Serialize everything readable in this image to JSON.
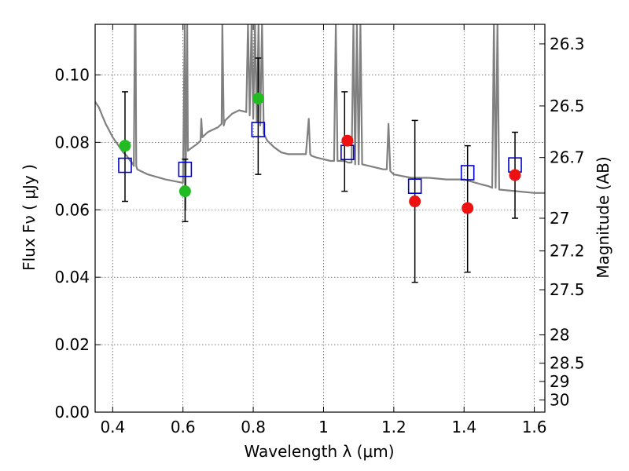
{
  "chart_data": {
    "type": "scatter",
    "title": "",
    "xlabel": "Wavelength  λ (μm)",
    "ylabel": "Flux  Fν  ( μJy )",
    "y2label": "Magnitude (AB)",
    "xlim": [
      0.35,
      1.63
    ],
    "ylim": [
      0.0,
      0.115
    ],
    "grid": true,
    "x_ticks": [
      0.4,
      0.6,
      0.8,
      1.0,
      1.2,
      1.4,
      1.6
    ],
    "x_tick_labels": [
      "0.4",
      "0.6",
      "0.8",
      "1",
      "1.2",
      "1.4",
      "1.6"
    ],
    "y_ticks": [
      0.0,
      0.02,
      0.04,
      0.06,
      0.08,
      0.1
    ],
    "y_tick_labels": [
      "0.00",
      "0.02",
      "0.04",
      "0.06",
      "0.08",
      "0.10"
    ],
    "y2_ticks": [
      {
        "flux": 0.1092,
        "label": "26.3"
      },
      {
        "flux": 0.0908,
        "label": "26.5"
      },
      {
        "flux": 0.0755,
        "label": "26.7"
      },
      {
        "flux": 0.0575,
        "label": "27"
      },
      {
        "flux": 0.0478,
        "label": "27.2"
      },
      {
        "flux": 0.0363,
        "label": "27.5"
      },
      {
        "flux": 0.0229,
        "label": "28"
      },
      {
        "flux": 0.0145,
        "label": "28.5"
      },
      {
        "flux": 0.0091,
        "label": "29"
      },
      {
        "flux": 0.0036,
        "label": "30"
      }
    ],
    "colors": {
      "model": "#808080",
      "model_points": "#0000cc",
      "observed_optical": "#22bb22",
      "observed_nir": "#ee1111",
      "errorbar": "#000000"
    },
    "series": [
      {
        "kind": "errorbar",
        "color": "black",
        "x": [
          0.435,
          0.606,
          0.814,
          1.06,
          1.26,
          1.41,
          1.545
        ],
        "y": [
          0.079,
          0.0655,
          0.093,
          0.0805,
          0.0625,
          0.0605,
          0.0703
        ],
        "yerr_low": [
          0.0625,
          0.0565,
          0.0705,
          0.0655,
          0.0385,
          0.0415,
          0.0575
        ],
        "yerr_high": [
          0.095,
          0.075,
          0.105,
          0.095,
          0.0865,
          0.079,
          0.083
        ]
      },
      {
        "kind": "points",
        "marker": "circle",
        "color": "green",
        "x": [
          0.435,
          0.606,
          0.814
        ],
        "y": [
          0.079,
          0.0655,
          0.093
        ]
      },
      {
        "kind": "points",
        "marker": "circle",
        "color": "red",
        "x": [
          1.068,
          1.26,
          1.41,
          1.545
        ],
        "y": [
          0.0805,
          0.0625,
          0.0605,
          0.0703
        ]
      },
      {
        "kind": "points",
        "marker": "open-square",
        "color": "blue",
        "x": [
          0.435,
          0.606,
          0.814,
          1.068,
          1.26,
          1.41,
          1.545
        ],
        "y": [
          0.0732,
          0.072,
          0.0838,
          0.077,
          0.067,
          0.071,
          0.0733
        ]
      },
      {
        "kind": "line",
        "color": "gray",
        "x": [
          0.35,
          0.36,
          0.37,
          0.38,
          0.39,
          0.4,
          0.41,
          0.42,
          0.43,
          0.44,
          0.45,
          0.455,
          0.46,
          0.463,
          0.465,
          0.467,
          0.47,
          0.5,
          0.55,
          0.6,
          0.605,
          0.607,
          0.612,
          0.614,
          0.62,
          0.64,
          0.65,
          0.652,
          0.655,
          0.66,
          0.67,
          0.68,
          0.69,
          0.7,
          0.71,
          0.712,
          0.716,
          0.72,
          0.74,
          0.76,
          0.78,
          0.785,
          0.79,
          0.795,
          0.8,
          0.805,
          0.81,
          0.815,
          0.82,
          0.825,
          0.83,
          0.84,
          0.86,
          0.88,
          0.9,
          0.92,
          0.95,
          0.958,
          0.962,
          0.966,
          0.98,
          1.0,
          1.02,
          1.03,
          1.035,
          1.04,
          1.05,
          1.06,
          1.07,
          1.08,
          1.085,
          1.09,
          1.095,
          1.1,
          1.105,
          1.11,
          1.13,
          1.15,
          1.17,
          1.18,
          1.185,
          1.19,
          1.2,
          1.25,
          1.3,
          1.35,
          1.4,
          1.45,
          1.47,
          1.48,
          1.485,
          1.49,
          1.495,
          1.5,
          1.55,
          1.6,
          1.63
        ],
        "y": [
          0.092,
          0.0905,
          0.088,
          0.0855,
          0.0835,
          0.0815,
          0.08,
          0.0785,
          0.077,
          0.076,
          0.0745,
          0.074,
          0.073,
          0.115,
          0.115,
          0.073,
          0.072,
          0.0705,
          0.069,
          0.068,
          0.115,
          0.06,
          0.115,
          0.0775,
          0.078,
          0.0795,
          0.0805,
          0.087,
          0.0815,
          0.082,
          0.083,
          0.0835,
          0.084,
          0.0845,
          0.0855,
          0.115,
          0.085,
          0.0865,
          0.0885,
          0.0895,
          0.089,
          0.115,
          0.088,
          0.115,
          0.087,
          0.115,
          0.086,
          0.115,
          0.085,
          0.115,
          0.0825,
          0.0805,
          0.0785,
          0.077,
          0.0765,
          0.0765,
          0.0765,
          0.087,
          0.0765,
          0.076,
          0.0755,
          0.075,
          0.0745,
          0.0745,
          0.115,
          0.0745,
          0.0745,
          0.0745,
          0.074,
          0.074,
          0.115,
          0.0735,
          0.115,
          0.0735,
          0.115,
          0.0735,
          0.073,
          0.0725,
          0.072,
          0.072,
          0.0855,
          0.0715,
          0.0705,
          0.0695,
          0.0695,
          0.069,
          0.069,
          0.0675,
          0.067,
          0.0665,
          0.115,
          0.0665,
          0.115,
          0.066,
          0.0655,
          0.065,
          0.065
        ]
      }
    ]
  }
}
